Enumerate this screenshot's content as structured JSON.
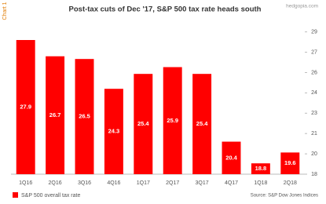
{
  "chart_data": {
    "type": "bar",
    "chart_label": "Chart 1",
    "title": "Post-tax cuts of Dec '17, S&P 500 tax rate heads south",
    "watermark": "hedgopia.com",
    "source": "Source: S&P Dow Jones Indices",
    "categories": [
      "1Q16",
      "2Q16",
      "3Q16",
      "4Q16",
      "1Q17",
      "2Q17",
      "3Q17",
      "4Q17",
      "1Q18",
      "2Q18"
    ],
    "series": [
      {
        "name": "S&P 500 overall tax rate",
        "color": "#ff0000",
        "values": [
          27.9,
          26.7,
          26.5,
          24.3,
          25.4,
          25.9,
          25.4,
          20.4,
          18.8,
          19.6
        ]
      }
    ],
    "ylim": [
      18,
      29
    ],
    "yticks": [
      {
        "value": 18,
        "label": "18"
      },
      {
        "value": 19.5,
        "label": "20"
      },
      {
        "value": 21,
        "label": "21"
      },
      {
        "value": 22.5,
        "label": "23"
      },
      {
        "value": 24,
        "label": "24"
      },
      {
        "value": 25.5,
        "label": "26"
      },
      {
        "value": 27,
        "label": "27"
      },
      {
        "value": 28.5,
        "label": "29"
      }
    ],
    "y_axis_side": "right"
  }
}
